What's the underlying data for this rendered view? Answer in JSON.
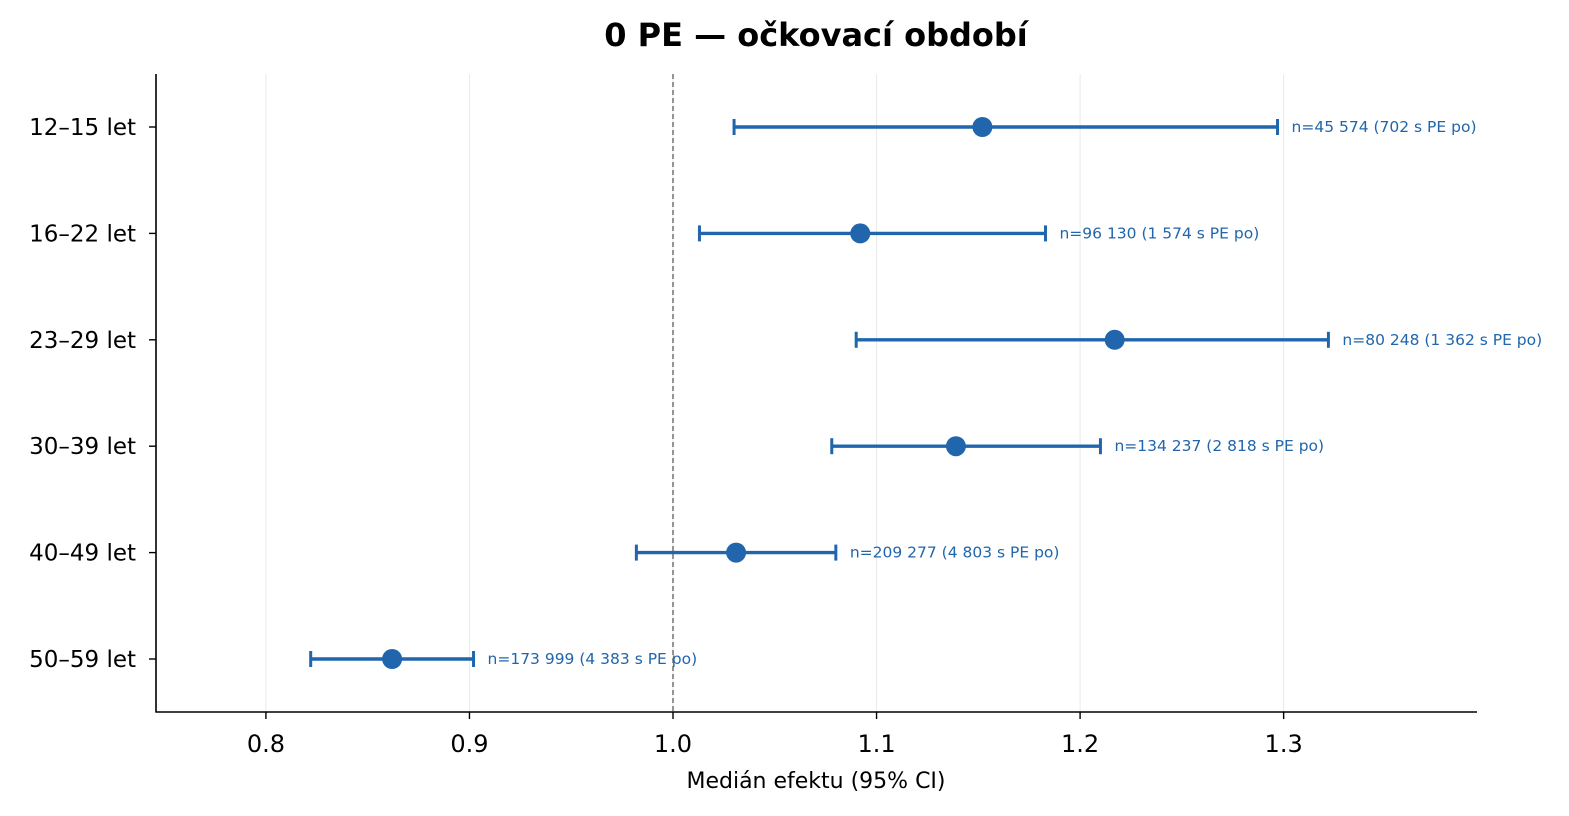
{
  "chart_data": {
    "type": "forest",
    "title": "0 PE — očkovací období",
    "xlabel": "Medián efektu (95% CI)",
    "ylabel": "",
    "xlim": [
      0.746,
      1.395
    ],
    "xticks": [
      0.8,
      0.9,
      1.0,
      1.1,
      1.2,
      1.3
    ],
    "xtick_labels": [
      "0.8",
      "0.9",
      "1.0",
      "1.1",
      "1.2",
      "1.3"
    ],
    "reference_line": 1.0,
    "grid": "vertical",
    "color": "#2166ac",
    "rows": [
      {
        "label": "12–15 let",
        "median": 1.152,
        "ci_low": 1.03,
        "ci_high": 1.297,
        "annotation": "n=45 574 (702 s PE po)"
      },
      {
        "label": "16–22 let",
        "median": 1.092,
        "ci_low": 1.013,
        "ci_high": 1.183,
        "annotation": "n=96 130 (1 574 s PE po)"
      },
      {
        "label": "23–29 let",
        "median": 1.217,
        "ci_low": 1.09,
        "ci_high": 1.322,
        "annotation": "n=80 248 (1 362 s PE po)"
      },
      {
        "label": "30–39 let",
        "median": 1.139,
        "ci_low": 1.078,
        "ci_high": 1.21,
        "annotation": "n=134 237 (2 818 s PE po)"
      },
      {
        "label": "40–49 let",
        "median": 1.031,
        "ci_low": 0.982,
        "ci_high": 1.08,
        "annotation": "n=209 277 (4 803 s PE po)"
      },
      {
        "label": "50–59 let",
        "median": 0.862,
        "ci_low": 0.822,
        "ci_high": 0.902,
        "annotation": "n=173 999 (4 383 s PE po)"
      }
    ]
  }
}
